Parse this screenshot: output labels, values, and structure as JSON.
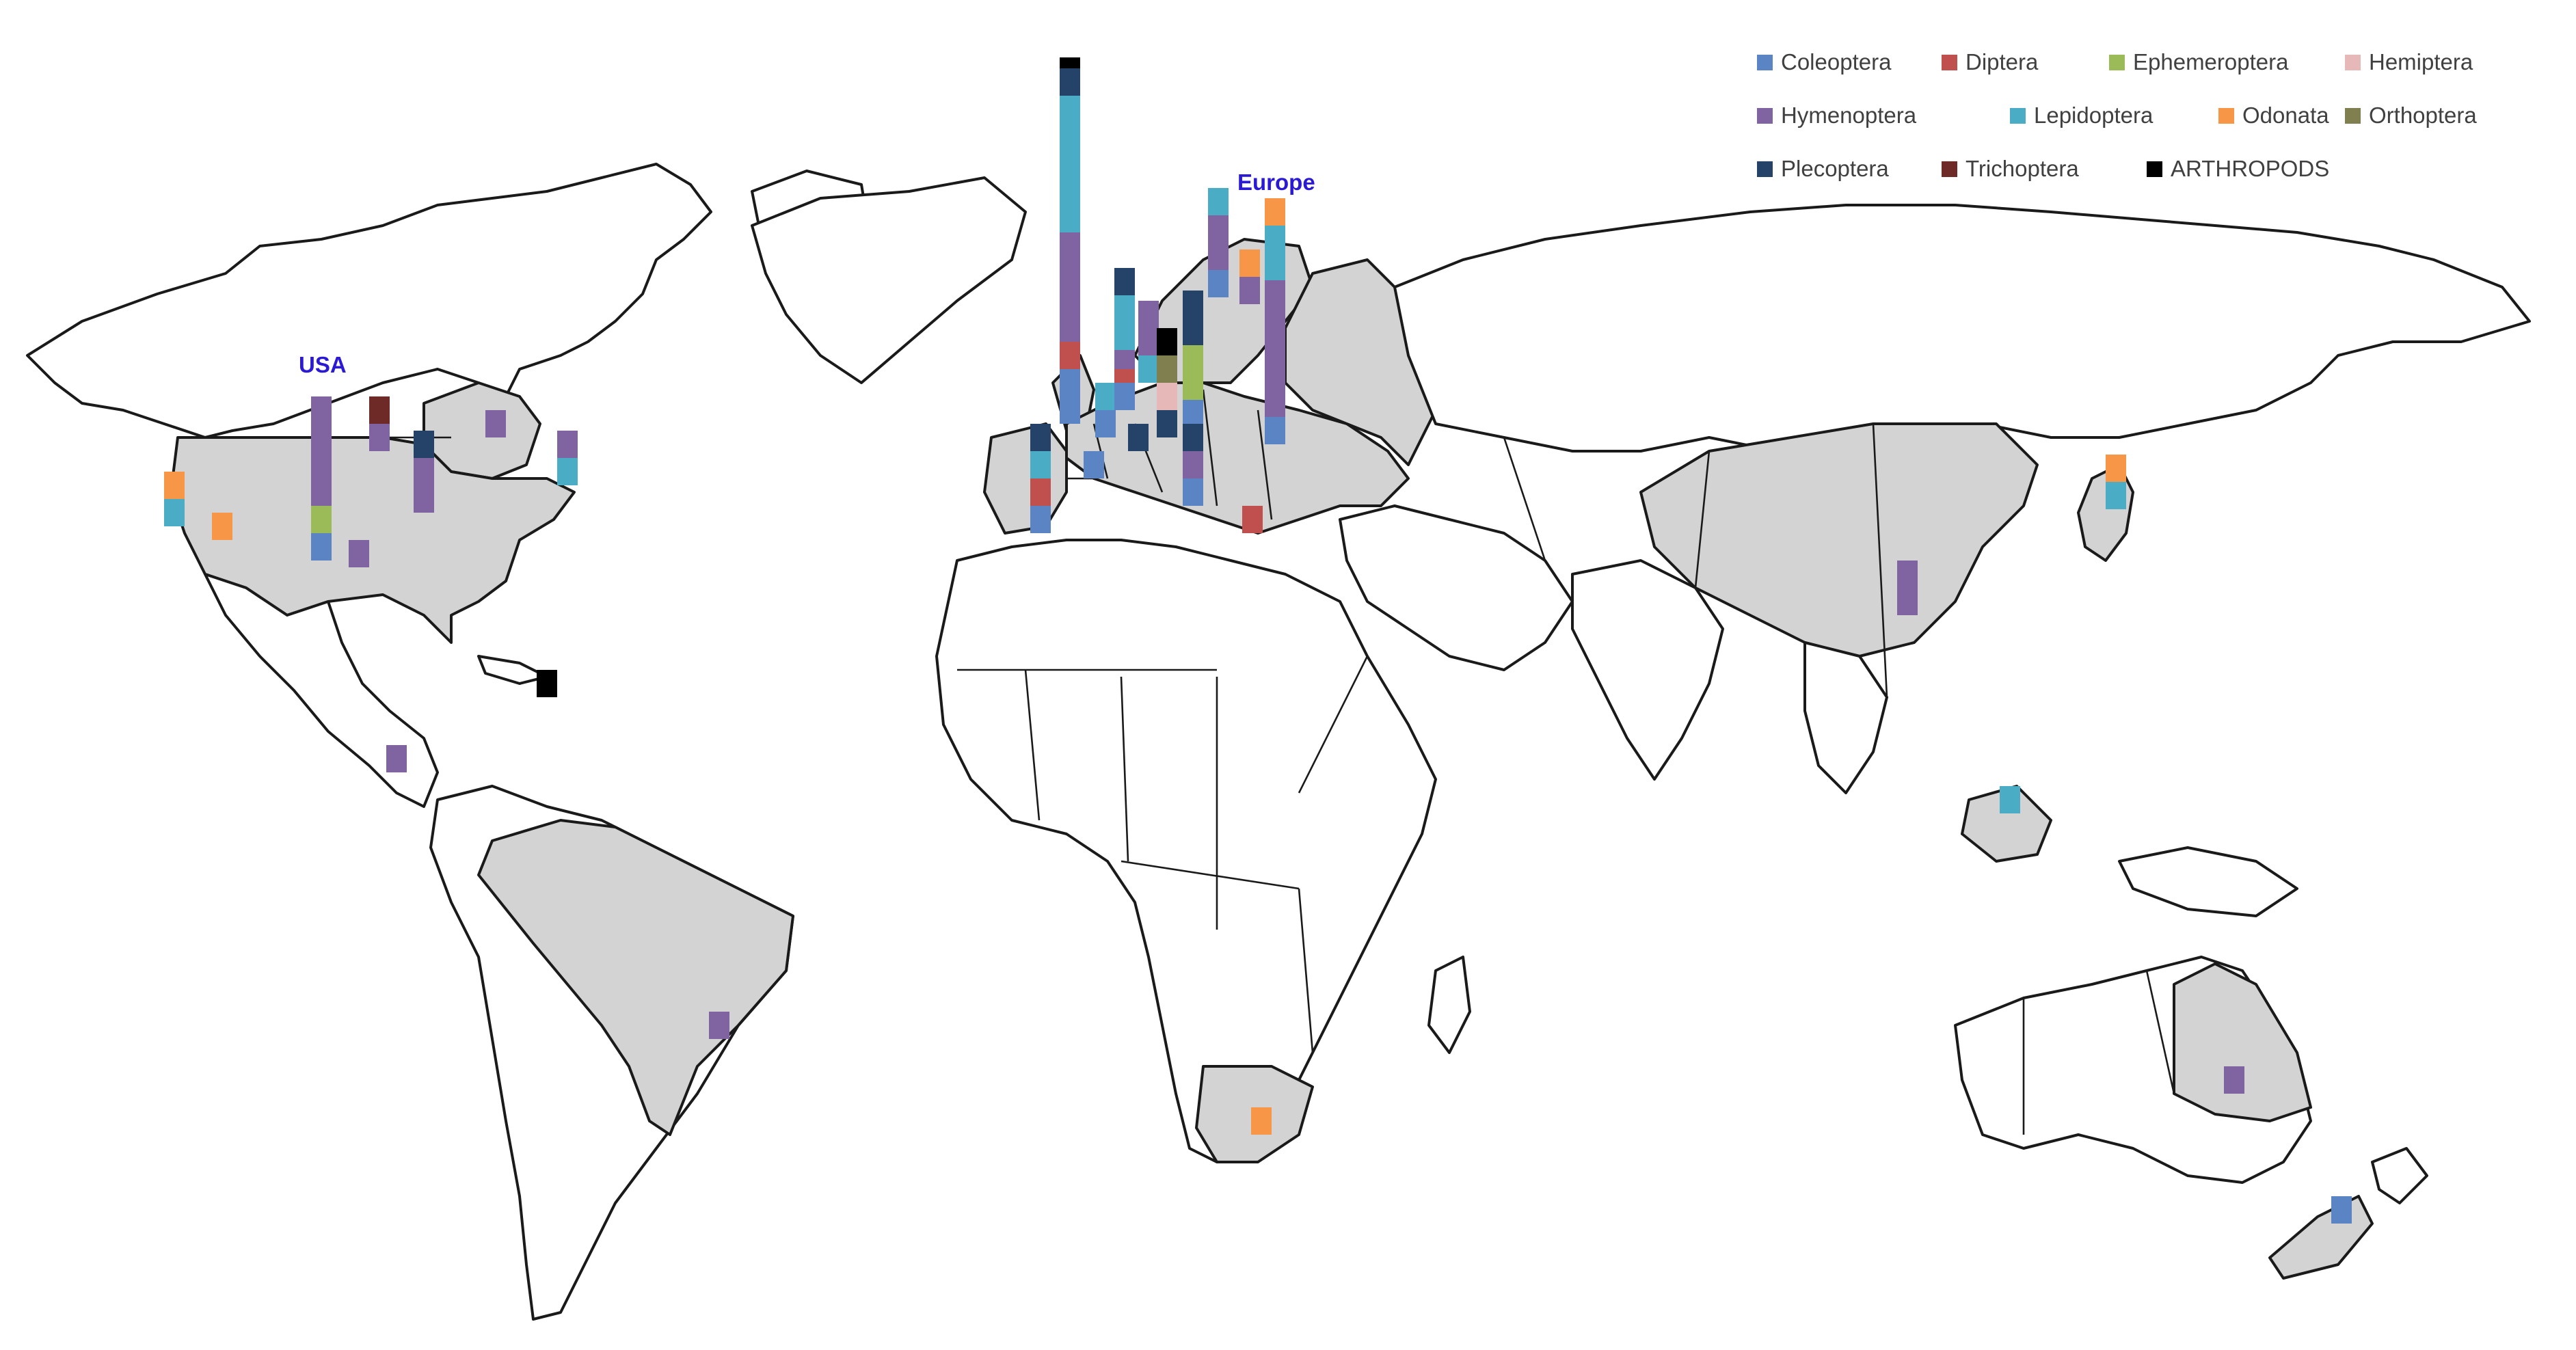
{
  "region_labels": {
    "usa": "USA",
    "europe": "Europe"
  },
  "legend": [
    {
      "key": "coleoptera",
      "label": "Coleoptera",
      "color": "#5b84c4"
    },
    {
      "key": "diptera",
      "label": "Diptera",
      "color": "#c0504d"
    },
    {
      "key": "ephemeroptera",
      "label": "Ephemeroptera",
      "color": "#9bbb59"
    },
    {
      "key": "hemiptera",
      "label": "Hemiptera",
      "color": "#e6b8b7"
    },
    {
      "key": "hymenoptera",
      "label": "Hymenoptera",
      "color": "#8064a2"
    },
    {
      "key": "lepidoptera",
      "label": "Lepidoptera",
      "color": "#4bacc6"
    },
    {
      "key": "odonata",
      "label": "Odonata",
      "color": "#f79646"
    },
    {
      "key": "orthoptera",
      "label": "Orthoptera",
      "color": "#7f7f4f"
    },
    {
      "key": "plecoptera",
      "label": "Plecoptera",
      "color": "#254268"
    },
    {
      "key": "trichoptera",
      "label": "Trichoptera",
      "color": "#6e2a27"
    },
    {
      "key": "arthropods",
      "label": "ARTHROPODS",
      "color": "#000000"
    }
  ],
  "highlighted_regions": [
    "USA",
    "Canada",
    "Brazil",
    "European Russia",
    "Scandinavia",
    "China",
    "Japan",
    "Borneo",
    "South Africa",
    "Queensland",
    "New Zealand South Island"
  ],
  "chart_data": {
    "type": "stacked-bar-map",
    "unit": "relative study counts (no scale printed)",
    "locations": [
      {
        "id": "usa-west-coast",
        "stack": [
          {
            "taxon": "lepidoptera",
            "n": 1
          },
          {
            "taxon": "odonata",
            "n": 1
          }
        ]
      },
      {
        "id": "usa-california",
        "stack": [
          {
            "taxon": "odonata",
            "n": 1
          }
        ]
      },
      {
        "id": "usa-midwest",
        "stack": [
          {
            "taxon": "coleoptera",
            "n": 1
          },
          {
            "taxon": "ephemeroptera",
            "n": 1
          },
          {
            "taxon": "hymenoptera",
            "n": 4
          }
        ]
      },
      {
        "id": "usa-kansas",
        "stack": [
          {
            "taxon": "hymenoptera",
            "n": 1
          }
        ]
      },
      {
        "id": "usa-great-lakes",
        "stack": [
          {
            "taxon": "hymenoptera",
            "n": 1
          },
          {
            "taxon": "trichoptera",
            "n": 1
          }
        ]
      },
      {
        "id": "usa-ohio",
        "stack": [
          {
            "taxon": "hymenoptera",
            "n": 2
          },
          {
            "taxon": "plecoptera",
            "n": 1
          }
        ]
      },
      {
        "id": "canada-quebec",
        "stack": [
          {
            "taxon": "hymenoptera",
            "n": 1
          }
        ]
      },
      {
        "id": "usa-northeast",
        "stack": [
          {
            "taxon": "lepidoptera",
            "n": 1
          },
          {
            "taxon": "hymenoptera",
            "n": 1
          }
        ]
      },
      {
        "id": "caribbean",
        "stack": [
          {
            "taxon": "arthropods",
            "n": 1
          }
        ]
      },
      {
        "id": "central-america",
        "stack": [
          {
            "taxon": "hymenoptera",
            "n": 1
          }
        ]
      },
      {
        "id": "brazil",
        "stack": [
          {
            "taxon": "hymenoptera",
            "n": 1
          }
        ]
      },
      {
        "id": "europe-iberia",
        "stack": [
          {
            "taxon": "coleoptera",
            "n": 1
          },
          {
            "taxon": "diptera",
            "n": 1
          },
          {
            "taxon": "lepidoptera",
            "n": 1
          },
          {
            "taxon": "plecoptera",
            "n": 1
          }
        ]
      },
      {
        "id": "europe-uk",
        "stack": [
          {
            "taxon": "coleoptera",
            "n": 2
          },
          {
            "taxon": "diptera",
            "n": 1
          },
          {
            "taxon": "hymenoptera",
            "n": 4
          },
          {
            "taxon": "lepidoptera",
            "n": 5
          },
          {
            "taxon": "plecoptera",
            "n": 1
          },
          {
            "taxon": "arthropods",
            "n": 0.4
          }
        ]
      },
      {
        "id": "europe-france",
        "stack": [
          {
            "taxon": "coleoptera",
            "n": 1
          }
        ]
      },
      {
        "id": "europe-belgium",
        "stack": [
          {
            "taxon": "coleoptera",
            "n": 1
          },
          {
            "taxon": "lepidoptera",
            "n": 1
          }
        ]
      },
      {
        "id": "europe-germany",
        "stack": [
          {
            "taxon": "coleoptera",
            "n": 1
          },
          {
            "taxon": "diptera",
            "n": 0.5
          },
          {
            "taxon": "hymenoptera",
            "n": 0.7
          },
          {
            "taxon": "lepidoptera",
            "n": 2
          },
          {
            "taxon": "plecoptera",
            "n": 1
          }
        ]
      },
      {
        "id": "europe-czech",
        "stack": [
          {
            "taxon": "plecoptera",
            "n": 1
          }
        ]
      },
      {
        "id": "europe-poland",
        "stack": [
          {
            "taxon": "lepidoptera",
            "n": 1
          },
          {
            "taxon": "hymenoptera",
            "n": 2
          }
        ]
      },
      {
        "id": "europe-austria",
        "stack": [
          {
            "taxon": "plecoptera",
            "n": 1
          },
          {
            "taxon": "hemiptera",
            "n": 1
          },
          {
            "taxon": "orthoptera",
            "n": 1
          },
          {
            "taxon": "arthropods",
            "n": 1
          }
        ]
      },
      {
        "id": "europe-sweden",
        "stack": [
          {
            "taxon": "coleoptera",
            "n": 1
          },
          {
            "taxon": "ephemeroptera",
            "n": 2
          },
          {
            "taxon": "plecoptera",
            "n": 2
          }
        ]
      },
      {
        "id": "europe-italy",
        "stack": [
          {
            "taxon": "coleoptera",
            "n": 1
          },
          {
            "taxon": "hymenoptera",
            "n": 1
          },
          {
            "taxon": "plecoptera",
            "n": 1
          }
        ]
      },
      {
        "id": "europe-finland",
        "stack": [
          {
            "taxon": "coleoptera",
            "n": 1
          },
          {
            "taxon": "hymenoptera",
            "n": 2
          },
          {
            "taxon": "lepidoptera",
            "n": 1
          }
        ]
      },
      {
        "id": "europe-baltic",
        "stack": [
          {
            "taxon": "hymenoptera",
            "n": 1
          },
          {
            "taxon": "odonata",
            "n": 1
          }
        ]
      },
      {
        "id": "europe-russia",
        "stack": [
          {
            "taxon": "coleoptera",
            "n": 1
          },
          {
            "taxon": "hymenoptera",
            "n": 5
          },
          {
            "taxon": "lepidoptera",
            "n": 2
          },
          {
            "taxon": "odonata",
            "n": 1
          }
        ]
      },
      {
        "id": "greece",
        "stack": [
          {
            "taxon": "diptera",
            "n": 1
          }
        ]
      },
      {
        "id": "south-africa",
        "stack": [
          {
            "taxon": "odonata",
            "n": 1
          }
        ]
      },
      {
        "id": "china",
        "stack": [
          {
            "taxon": "hymenoptera",
            "n": 2
          }
        ]
      },
      {
        "id": "japan",
        "stack": [
          {
            "taxon": "lepidoptera",
            "n": 1
          },
          {
            "taxon": "odonata",
            "n": 1
          }
        ]
      },
      {
        "id": "borneo",
        "stack": [
          {
            "taxon": "lepidoptera",
            "n": 1
          }
        ]
      },
      {
        "id": "australia-queensland",
        "stack": [
          {
            "taxon": "hymenoptera",
            "n": 1
          }
        ]
      },
      {
        "id": "new-zealand",
        "stack": [
          {
            "taxon": "coleoptera",
            "n": 1
          }
        ]
      }
    ]
  }
}
